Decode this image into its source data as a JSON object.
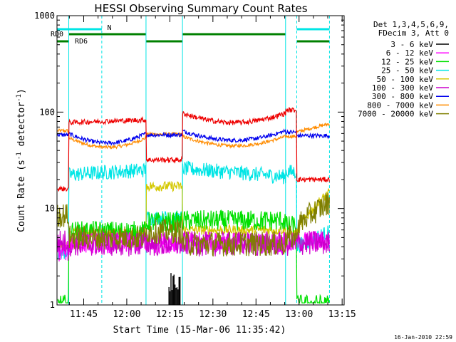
{
  "chart_data": {
    "type": "line",
    "title": "HESSI Observing Summary Count Rates",
    "xlabel": "Start Time (15-Mar-06 11:35:42)",
    "ylabel_prefix": "Count Rate (s",
    "ylabel_sup1": "-1",
    "ylabel_mid": " detector",
    "ylabel_sup2": "-1",
    "ylabel_suffix": ")",
    "y_scale": "log",
    "ylim": [
      1,
      1000
    ],
    "y_ticks": [
      1,
      10,
      100,
      1000
    ],
    "y_tick_labels": [
      "1",
      "10",
      "100",
      "1000"
    ],
    "x_range_minutes_after_start": [
      0,
      100
    ],
    "x_ticks": [
      9.3,
      24.3,
      39.3,
      54.3,
      69.3,
      84.3,
      99.3
    ],
    "x_tick_labels": [
      "11:45",
      "12:00",
      "12:15",
      "12:30",
      "12:45",
      "13:00",
      "13:15"
    ],
    "legend_header": [
      "Det 1,3,4,5,6,9,",
      "FDecim 3, Att 0"
    ],
    "series": [
      {
        "name": "3 - 6 keV",
        "color": "#000000"
      },
      {
        "name": "6 - 12 keV",
        "color": "#ff00ff"
      },
      {
        "name": "12 - 25 keV",
        "color": "#00e000"
      },
      {
        "name": "25 - 50 keV",
        "color": "#00e5e5"
      },
      {
        "name": "50 - 100 keV",
        "color": "#d4c800"
      },
      {
        "name": "100 - 300 keV",
        "color": "#cc00cc"
      },
      {
        "name": "300 - 800 keV",
        "color": "#0000ee"
      },
      {
        "name": "800 - 7000 keV",
        "color": "#ff8c00"
      },
      {
        "name": "7000 - 20000 keV",
        "color": "#7f7f00"
      }
    ],
    "flags": [
      {
        "label": "N",
        "color": "#00e5e5"
      },
      {
        "label": "RD0",
        "color": "#008000"
      },
      {
        "label": "RD6",
        "color": "#008000"
      }
    ],
    "grid": false,
    "legend_position": "right"
  },
  "footer": {
    "date_stamp": "16-Jan-2010 22:59"
  }
}
